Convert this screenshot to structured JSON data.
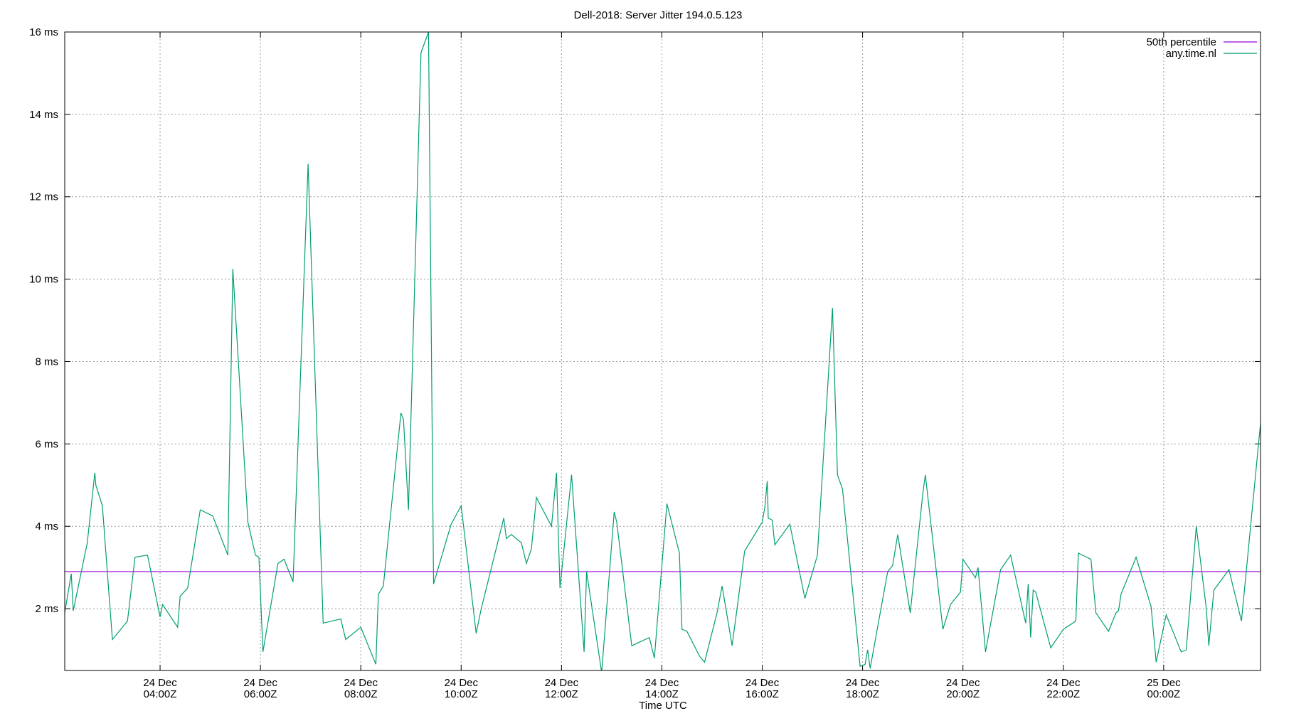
{
  "chart_data": {
    "type": "line",
    "title": "Dell-2018: Server Jitter 194.0.5.123",
    "xlabel": "Time UTC",
    "ylabel": "",
    "xlim": [
      "24 Dec 02:07Z",
      "25 Dec 01:56Z"
    ],
    "ylim": [
      0.5,
      16
    ],
    "grid": true,
    "legend_position": "top-right",
    "y_ticks": [
      {
        "value": 2,
        "label": "2 ms"
      },
      {
        "value": 4,
        "label": "4 ms"
      },
      {
        "value": 6,
        "label": "6 ms"
      },
      {
        "value": 8,
        "label": "8 ms"
      },
      {
        "value": 10,
        "label": "10 ms"
      },
      {
        "value": 12,
        "label": "12 ms"
      },
      {
        "value": 14,
        "label": "14 ms"
      },
      {
        "value": 16,
        "label": "16 ms"
      }
    ],
    "x_ticks": [
      {
        "value": 4,
        "line1": "24 Dec",
        "line2": "04:00Z"
      },
      {
        "value": 6,
        "line1": "24 Dec",
        "line2": "06:00Z"
      },
      {
        "value": 8,
        "line1": "24 Dec",
        "line2": "08:00Z"
      },
      {
        "value": 10,
        "line1": "24 Dec",
        "line2": "10:00Z"
      },
      {
        "value": 12,
        "line1": "24 Dec",
        "line2": "12:00Z"
      },
      {
        "value": 14,
        "line1": "24 Dec",
        "line2": "14:00Z"
      },
      {
        "value": 16,
        "line1": "24 Dec",
        "line2": "16:00Z"
      },
      {
        "value": 18,
        "line1": "24 Dec",
        "line2": "18:00Z"
      },
      {
        "value": 20,
        "line1": "24 Dec",
        "line2": "20:00Z"
      },
      {
        "value": 22,
        "line1": "24 Dec",
        "line2": "22:00Z"
      },
      {
        "value": 24,
        "line1": "25 Dec",
        "line2": "00:00Z"
      }
    ],
    "x_range_hours": [
      2.1,
      25.93
    ],
    "series": [
      {
        "name": "50th percentile",
        "color": "#9400d3",
        "kind": "hline",
        "value": 2.9
      },
      {
        "name": "any.time.nl",
        "color": "#009e73",
        "kind": "line",
        "points": [
          [
            2.1,
            1.9
          ],
          [
            2.23,
            2.85
          ],
          [
            2.27,
            1.95
          ],
          [
            2.55,
            3.6
          ],
          [
            2.7,
            5.3
          ],
          [
            2.72,
            5.0
          ],
          [
            2.85,
            4.5
          ],
          [
            3.05,
            1.25
          ],
          [
            3.35,
            1.7
          ],
          [
            3.5,
            3.25
          ],
          [
            3.75,
            3.3
          ],
          [
            4.0,
            1.8
          ],
          [
            4.05,
            2.1
          ],
          [
            4.35,
            1.55
          ],
          [
            4.4,
            2.3
          ],
          [
            4.55,
            2.5
          ],
          [
            4.8,
            4.4
          ],
          [
            5.05,
            4.25
          ],
          [
            5.35,
            3.3
          ],
          [
            5.45,
            10.25
          ],
          [
            5.75,
            4.1
          ],
          [
            5.9,
            3.3
          ],
          [
            5.97,
            3.25
          ],
          [
            6.05,
            0.95
          ],
          [
            6.35,
            3.1
          ],
          [
            6.47,
            3.2
          ],
          [
            6.65,
            2.65
          ],
          [
            6.95,
            12.8
          ],
          [
            7.25,
            1.65
          ],
          [
            7.6,
            1.75
          ],
          [
            7.7,
            1.25
          ],
          [
            8.0,
            1.55
          ],
          [
            8.3,
            0.65
          ],
          [
            8.35,
            2.35
          ],
          [
            8.45,
            2.55
          ],
          [
            8.8,
            6.75
          ],
          [
            8.85,
            6.6
          ],
          [
            8.95,
            4.4
          ],
          [
            9.2,
            15.5
          ],
          [
            9.35,
            16.0
          ],
          [
            9.45,
            2.6
          ],
          [
            9.8,
            4.05
          ],
          [
            10.0,
            4.5
          ],
          [
            10.3,
            1.4
          ],
          [
            10.4,
            2.0
          ],
          [
            10.85,
            4.2
          ],
          [
            10.9,
            3.7
          ],
          [
            11.0,
            3.8
          ],
          [
            11.2,
            3.6
          ],
          [
            11.3,
            3.1
          ],
          [
            11.4,
            3.45
          ],
          [
            11.5,
            4.7
          ],
          [
            11.8,
            4.0
          ],
          [
            11.9,
            5.3
          ],
          [
            11.97,
            2.5
          ],
          [
            12.2,
            5.25
          ],
          [
            12.45,
            0.95
          ],
          [
            12.5,
            2.9
          ],
          [
            12.8,
            0.45
          ],
          [
            13.05,
            4.35
          ],
          [
            13.1,
            4.1
          ],
          [
            13.4,
            1.1
          ],
          [
            13.75,
            1.3
          ],
          [
            13.85,
            0.8
          ],
          [
            14.1,
            4.55
          ],
          [
            14.35,
            3.35
          ],
          [
            14.4,
            1.5
          ],
          [
            14.5,
            1.45
          ],
          [
            14.75,
            0.85
          ],
          [
            14.85,
            0.7
          ],
          [
            15.1,
            1.9
          ],
          [
            15.2,
            2.55
          ],
          [
            15.4,
            1.1
          ],
          [
            15.65,
            3.4
          ],
          [
            16.0,
            4.1
          ],
          [
            16.05,
            4.45
          ],
          [
            16.1,
            5.1
          ],
          [
            16.12,
            4.2
          ],
          [
            16.2,
            4.15
          ],
          [
            16.25,
            3.55
          ],
          [
            16.55,
            4.05
          ],
          [
            16.85,
            2.25
          ],
          [
            17.1,
            3.3
          ],
          [
            17.4,
            9.3
          ],
          [
            17.5,
            5.25
          ],
          [
            17.6,
            4.9
          ],
          [
            17.95,
            0.6
          ],
          [
            18.05,
            0.65
          ],
          [
            18.1,
            1.0
          ],
          [
            18.15,
            0.55
          ],
          [
            18.5,
            2.9
          ],
          [
            18.6,
            3.05
          ],
          [
            18.7,
            3.8
          ],
          [
            18.95,
            1.9
          ],
          [
            19.2,
            4.8
          ],
          [
            19.25,
            5.25
          ],
          [
            19.6,
            1.5
          ],
          [
            19.75,
            2.1
          ],
          [
            19.95,
            2.4
          ],
          [
            20.0,
            3.2
          ],
          [
            20.25,
            2.75
          ],
          [
            20.3,
            3.0
          ],
          [
            20.45,
            0.95
          ],
          [
            20.75,
            2.95
          ],
          [
            20.95,
            3.3
          ],
          [
            21.25,
            1.65
          ],
          [
            21.3,
            2.6
          ],
          [
            21.35,
            1.3
          ],
          [
            21.4,
            2.45
          ],
          [
            21.45,
            2.4
          ],
          [
            21.75,
            1.05
          ],
          [
            22.0,
            1.5
          ],
          [
            22.25,
            1.7
          ],
          [
            22.3,
            3.35
          ],
          [
            22.55,
            3.2
          ],
          [
            22.65,
            1.9
          ],
          [
            22.9,
            1.45
          ],
          [
            23.05,
            1.9
          ],
          [
            23.1,
            1.95
          ],
          [
            23.15,
            2.35
          ],
          [
            23.45,
            3.25
          ],
          [
            23.75,
            2.05
          ],
          [
            23.85,
            0.7
          ],
          [
            24.05,
            1.85
          ],
          [
            24.35,
            0.95
          ],
          [
            24.45,
            1.0
          ],
          [
            24.65,
            4.0
          ],
          [
            24.85,
            2.0
          ],
          [
            24.9,
            1.1
          ],
          [
            25.0,
            2.45
          ],
          [
            25.3,
            2.95
          ],
          [
            25.55,
            1.7
          ],
          [
            25.93,
            6.5
          ]
        ]
      }
    ]
  }
}
